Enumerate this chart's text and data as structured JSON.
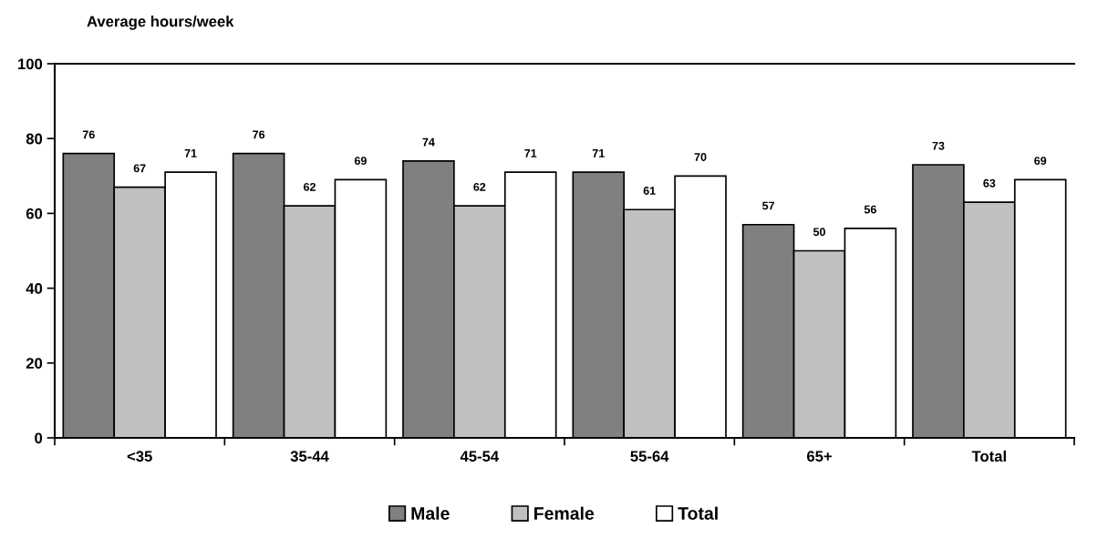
{
  "chart_data": {
    "type": "bar",
    "title": "Average hours/week",
    "categories": [
      "<35",
      "35-44",
      "45-54",
      "55-64",
      "65+",
      "Total"
    ],
    "series": [
      {
        "name": "Male",
        "color": "#808080",
        "values": [
          76,
          76,
          74,
          71,
          57,
          73
        ]
      },
      {
        "name": "Female",
        "color": "#c0c0c0",
        "values": [
          67,
          62,
          62,
          61,
          50,
          63
        ]
      },
      {
        "name": "Total",
        "color": "#ffffff",
        "values": [
          71,
          69,
          71,
          70,
          56,
          69
        ]
      }
    ],
    "ylim": [
      0,
      100
    ],
    "yticks": [
      0,
      20,
      40,
      60,
      80,
      100
    ],
    "grid": false,
    "legend": "bottom",
    "data_labels": true
  }
}
